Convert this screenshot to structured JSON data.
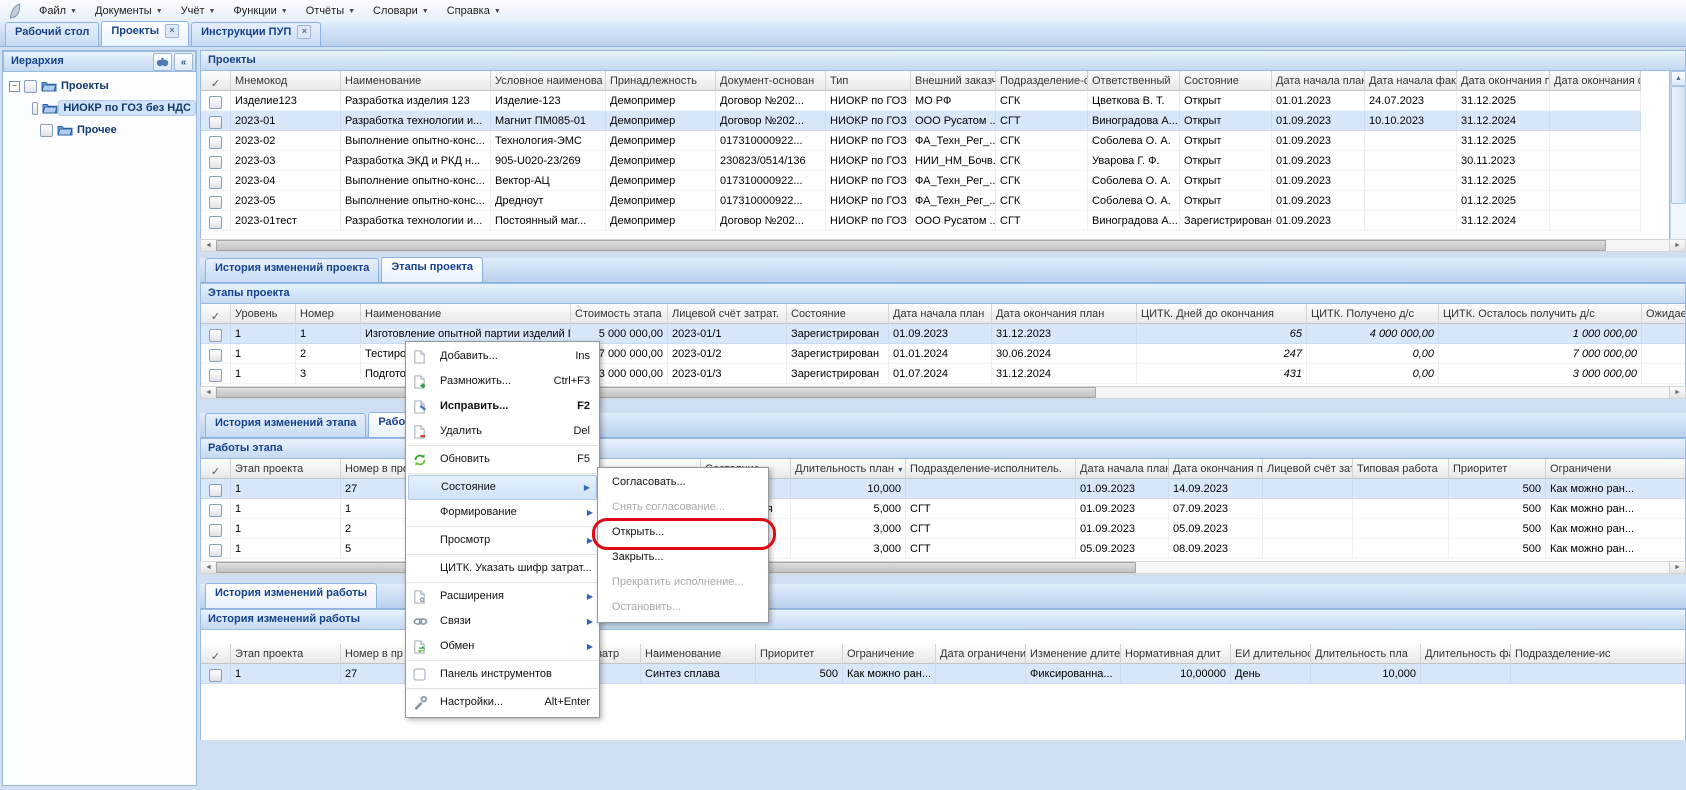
{
  "menubar": {
    "logo_icon": "quill",
    "items": [
      {
        "label": "Файл"
      },
      {
        "label": "Документы"
      },
      {
        "label": "Учёт"
      },
      {
        "label": "Функции"
      },
      {
        "label": "Отчёты"
      },
      {
        "label": "Словари"
      },
      {
        "label": "Справка"
      }
    ]
  },
  "main_tabs": {
    "close_glyph": "×",
    "items": [
      {
        "label": "Рабочий стол",
        "active": false,
        "closable": false
      },
      {
        "label": "Проекты",
        "active": true,
        "closable": true
      },
      {
        "label": "Инструкции ПУП",
        "active": false,
        "closable": true
      }
    ]
  },
  "sidebar": {
    "title": "Иерархия",
    "buttons": [
      {
        "icon": "binoculars",
        "glyph": ""
      },
      {
        "icon": "collapse",
        "glyph": "«"
      }
    ],
    "tree": [
      {
        "label": "Проекты",
        "level": 0,
        "expander": "−",
        "selected": false
      },
      {
        "label": "НИОКР по ГОЗ без НДС",
        "level": 1,
        "expander": "",
        "selected": true
      },
      {
        "label": "Прочее",
        "level": 1,
        "expander": "",
        "selected": false
      }
    ]
  },
  "section_tabs": {
    "project": {
      "items": [
        {
          "label": "История изменений проекта",
          "active": false
        },
        {
          "label": "Этапы проекта",
          "active": true
        }
      ]
    },
    "stage": {
      "items": [
        {
          "label": "История изменений этапа",
          "active": false
        },
        {
          "label": "Работы этапа",
          "active": true
        }
      ]
    },
    "work": {
      "items": [
        {
          "label": "История изменений работы",
          "active": true
        }
      ]
    }
  },
  "tables": {
    "projects": {
      "title": "Проекты",
      "check_glyph": "✓",
      "columns": [
        "Мнемокод",
        "Наименование",
        "Условное наименова",
        "Принадлежность",
        "Документ-основан",
        "Тип",
        "Внешний заказчик",
        "Подразделение-от",
        "Ответственный",
        "Состояние",
        "Дата начала план.",
        "Дата начала факт.",
        "Дата окончания пл",
        "Дата окончания ф"
      ],
      "selected_row": 1,
      "rows": [
        [
          "Изделие123",
          "Разработка изделия 123",
          "Изделие-123",
          "Демопример",
          "Договор №202...",
          "НИОКР по ГОЗ ...",
          "МО РФ",
          "СГК",
          "Цветкова В. Т.",
          "Открыт",
          "01.01.2023",
          "24.07.2023",
          "31.12.2025",
          ""
        ],
        [
          "2023-01",
          "Разработка технологии и...",
          "Магнит ПМ085-01",
          "Демопример",
          "Договор №202...",
          "НИОКР по ГОЗ ...",
          "ООО Русатом ...",
          "СГТ",
          "Виноградова А...",
          "Открыт",
          "01.09.2023",
          "10.10.2023",
          "31.12.2024",
          ""
        ],
        [
          "2023-02",
          "Выполнение опытно-конс...",
          "Технология-ЭМС",
          "Демопример",
          "017310000922...",
          "НИОКР по ГОЗ ...",
          "ФА_Техн_Рег_...",
          "СГК",
          "Соболева О. А.",
          "Открыт",
          "01.09.2023",
          "",
          "31.12.2025",
          ""
        ],
        [
          "2023-03",
          "Разработка ЭКД и РКД н...",
          "905-U020-23/269",
          "Демопример",
          "230823/0514/136",
          "НИОКР по ГОЗ ...",
          "НИИ_НМ_Бочв...",
          "СГК",
          "Уварова Г. Ф.",
          "Открыт",
          "01.09.2023",
          "",
          "30.11.2023",
          ""
        ],
        [
          "2023-04",
          "Выполнение опытно-конс...",
          "Вектор-АЦ",
          "Демопример",
          "017310000922...",
          "НИОКР по ГОЗ ...",
          "ФА_Техн_Рег_...",
          "СГК",
          "Соболева О. А.",
          "Открыт",
          "01.09.2023",
          "",
          "31.12.2025",
          ""
        ],
        [
          "2023-05",
          "Выполнение опытно-конс...",
          "Дредноут",
          "Демопример",
          "017310000922...",
          "НИОКР по ГОЗ ...",
          "ФА_Техн_Рег_...",
          "СГК",
          "Соболева О. А.",
          "Открыт",
          "01.09.2023",
          "",
          "01.12.2025",
          ""
        ],
        [
          "2023-01тест",
          "Разработка технологии и...",
          "Постоянный маг...",
          "Демопример",
          "Договор №202...",
          "НИОКР по ГОЗ ...",
          "ООО Русатом ...",
          "СГТ",
          "Виноградова А...",
          "Зарегистрирован",
          "01.09.2023",
          "",
          "31.12.2024",
          ""
        ]
      ]
    },
    "stages": {
      "title": "Этапы проекта",
      "check_glyph": "✓",
      "columns": [
        "Уровень",
        "Номер",
        "Наименование",
        "Стоимость этапа",
        "Лицевой счёт затрат.",
        "Состояние",
        "Дата начала план",
        "Дата окончания план",
        "ЦИТК. Дней до окончания",
        "ЦИТК. Получено д/с",
        "ЦИТК. Осталось получить д/с",
        "Ожидаемые "
      ],
      "selected_row": 0,
      "rows": [
        [
          "1",
          "1",
          "Изготовление опытной партии изделий ПМ085-01",
          "5 000 000,00",
          "2023-01/1",
          "Зарегистрирован",
          "01.09.2023",
          "31.12.2023",
          "65",
          "4 000 000,00",
          "1 000 000,00",
          ""
        ],
        [
          "1",
          "2",
          "Тестирование изделий",
          "7 000 000,00",
          "2023-01/2",
          "Зарегистрирован",
          "01.01.2024",
          "30.06.2024",
          "247",
          "0,00",
          "7 000 000,00",
          ""
        ],
        [
          "1",
          "3",
          "Подготовка производства",
          "3 000 000,00",
          "2023-01/3",
          "Зарегистрирован",
          "01.07.2024",
          "31.12.2024",
          "431",
          "0,00",
          "3 000 000,00",
          ""
        ]
      ]
    },
    "works": {
      "title": "Работы этапа",
      "check_glyph": "✓",
      "sorted_column": "Длительность план",
      "sort_glyph": "▼",
      "columns": [
        "Этап проекта",
        "Номер в прое",
        "Наименование",
        "Состояние",
        "Длительность план",
        "Подразделение-исполнитель.",
        "Дата начала план.",
        "Дата окончания план",
        "Лицевой счёт затр",
        "Типовая работа",
        "Приоритет",
        "Ограничени"
      ],
      "selected_row": 0,
      "rows": [
        [
          "1",
          "27",
          "Синтез сплава",
          "",
          "10,000",
          "",
          "01.09.2023",
          "14.09.2023",
          "",
          "",
          "500",
          "Как можно ран..."
        ],
        [
          "1",
          "1",
          "",
          "Выполняется",
          "5,000",
          "СГТ",
          "01.09.2023",
          "07.09.2023",
          "",
          "",
          "500",
          "Как можно ран..."
        ],
        [
          "1",
          "2",
          "",
          "",
          "3,000",
          "СГТ",
          "01.09.2023",
          "05.09.2023",
          "",
          "",
          "500",
          "Как можно ран..."
        ],
        [
          "1",
          "5",
          "",
          "",
          "3,000",
          "СГТ",
          "05.09.2023",
          "08.09.2023",
          "",
          "",
          "500",
          "Как можно ран..."
        ]
      ]
    },
    "history": {
      "title": "История изменений работы",
      "check_glyph": "✓",
      "columns": [
        "Этап проекта",
        "Номер в пр",
        "Изменение",
        "Лицевой счёт затр",
        "Наименование",
        "Приоритет",
        "Ограничение",
        "Дата ограничения",
        "Изменение длите",
        "Нормативная длит",
        "ЕИ длительности",
        "Длительность пла",
        "Длительность фак",
        "Подразделение-ис"
      ],
      "selected_row": 0,
      "rows": [
        [
          "1",
          "27",
          "",
          "",
          "Синтез сплава",
          "500",
          "Как можно ран...",
          "",
          "Фиксированна...",
          "10,00000",
          "День",
          "10,000",
          "",
          ""
        ]
      ]
    }
  },
  "context_menu": {
    "items": [
      {
        "label": "Добавить...",
        "shortcut": "Ins",
        "icon": "page"
      },
      {
        "label": "Размножить...",
        "shortcut": "Ctrl+F3",
        "icon": "page-plus"
      },
      {
        "label": "Исправить...",
        "shortcut": "F2",
        "icon": "page-edit",
        "bold": true
      },
      {
        "label": "Удалить",
        "shortcut": "Del",
        "icon": "page-minus"
      },
      {
        "separator": true
      },
      {
        "label": "Обновить",
        "shortcut": "F5",
        "icon": "refresh"
      },
      {
        "separator": true
      },
      {
        "label": "Состояние",
        "submenu": true,
        "highlighted": true
      },
      {
        "label": "Формирование",
        "submenu": true
      },
      {
        "separator": true
      },
      {
        "label": "Просмотр",
        "submenu": true
      },
      {
        "separator": true
      },
      {
        "label": "ЦИТК. Указать шифр затрат..."
      },
      {
        "separator": true
      },
      {
        "label": "Расширения",
        "submenu": true,
        "icon": "gear-page"
      },
      {
        "label": "Связи",
        "submenu": true,
        "icon": "chain"
      },
      {
        "label": "Обмен",
        "submenu": true,
        "icon": "exchange-page"
      },
      {
        "separator": true
      },
      {
        "label": "Панель инструментов",
        "icon": "checkbox"
      },
      {
        "separator": true
      },
      {
        "label": "Настройки...",
        "shortcut": "Alt+Enter",
        "icon": "wrench"
      }
    ]
  },
  "submenu": {
    "items": [
      {
        "label": "Согласовать...",
        "disabled": false
      },
      {
        "label": "Снять согласование...",
        "disabled": true
      },
      {
        "label": "Открыть...",
        "disabled": false,
        "annotated": true
      },
      {
        "label": "Закрыть...",
        "disabled": false
      },
      {
        "label": "Прекратить исполнение...",
        "disabled": true
      },
      {
        "label": "Остановить...",
        "disabled": true
      }
    ]
  },
  "annotation": {
    "shape": "oval",
    "color": "#e00914"
  }
}
